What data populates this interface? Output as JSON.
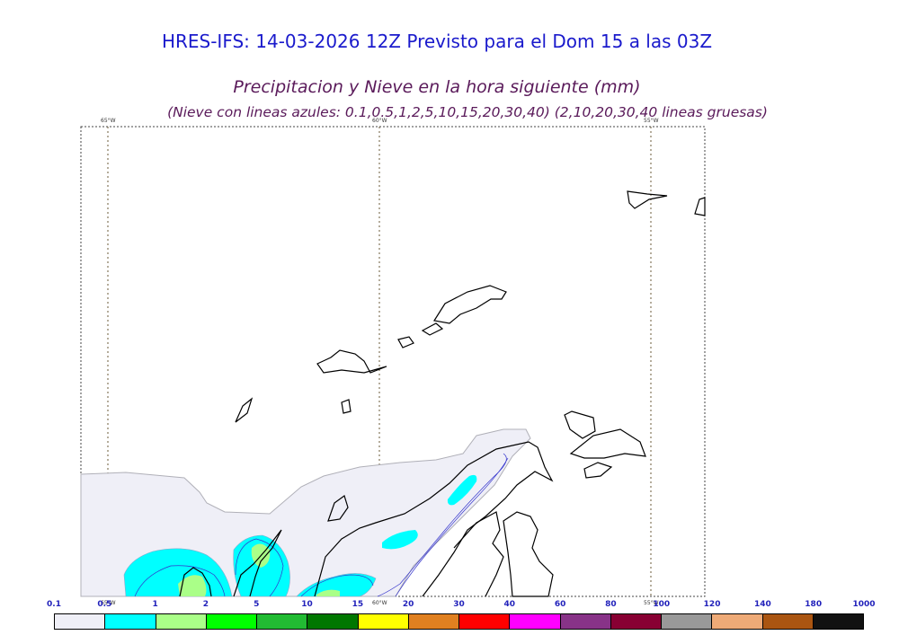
{
  "header": {
    "model_line": "HRES-IFS: 14-03-2026 12Z Previsto para el Dom 15 a las 03Z",
    "variable_line": "Precipitacion y Nieve en la hora siguiente (mm)",
    "snow_note": "(Nieve con lineas azules: 0.1,0.5,1,2,5,10,15,20,30,40)  (2,10,20,30,40 lineas gruesas)"
  },
  "map": {
    "meridian_labels_top": [
      "65°W",
      "60°W",
      "55°W"
    ],
    "meridian_labels_bottom": [
      "65°W",
      "60°W",
      "55°W"
    ]
  },
  "colorbar": {
    "labels": [
      "0.1",
      "0.5",
      "1",
      "2",
      "5",
      "10",
      "15",
      "20",
      "30",
      "40",
      "60",
      "80",
      "100",
      "120",
      "140",
      "180",
      "1000"
    ],
    "colors": [
      "#efeff7",
      "#00ffff",
      "#aaff88",
      "#00ff00",
      "#22bb33",
      "#007700",
      "#ffff00",
      "#e08020",
      "#ff0000",
      "#ff00ff",
      "#883388",
      "#880033",
      "#999999",
      "#eeaa77",
      "#aa5511",
      "#111111"
    ]
  }
}
